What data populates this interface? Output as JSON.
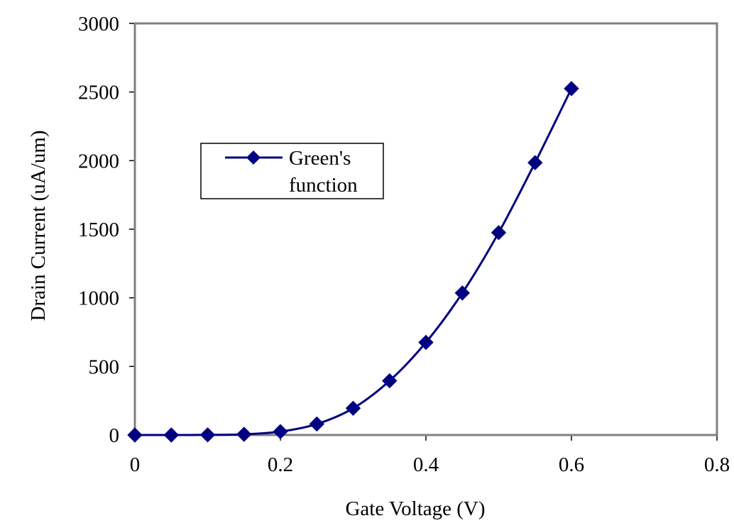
{
  "chart_data": {
    "type": "line",
    "title": "",
    "xlabel": "Gate Voltage (V)",
    "ylabel": "Drain Current (uA/um)",
    "xlim": [
      0,
      0.8
    ],
    "ylim": [
      0,
      3000
    ],
    "x_ticks": [
      0,
      0.2,
      0.4,
      0.6,
      0.8
    ],
    "x_tick_labels": [
      "0",
      "0.2",
      "0.4",
      "0.6",
      "0.8"
    ],
    "y_ticks": [
      0,
      500,
      1000,
      1500,
      2000,
      2500,
      3000
    ],
    "y_tick_labels": [
      "0",
      "500",
      "1000",
      "1500",
      "2000",
      "2500",
      "3000"
    ],
    "grid": false,
    "legend_position": "upper-left",
    "series": [
      {
        "name": "Green's function",
        "legend_lines": [
          "Green's",
          "function"
        ],
        "color": "#000080",
        "marker": "diamond",
        "x": [
          0,
          0.05,
          0.1,
          0.15,
          0.2,
          0.25,
          0.3,
          0.35,
          0.4,
          0.45,
          0.5,
          0.55,
          0.6
        ],
        "y": [
          0,
          0,
          1,
          5,
          25,
          80,
          195,
          395,
          675,
          1035,
          1475,
          1985,
          2525
        ]
      }
    ]
  }
}
